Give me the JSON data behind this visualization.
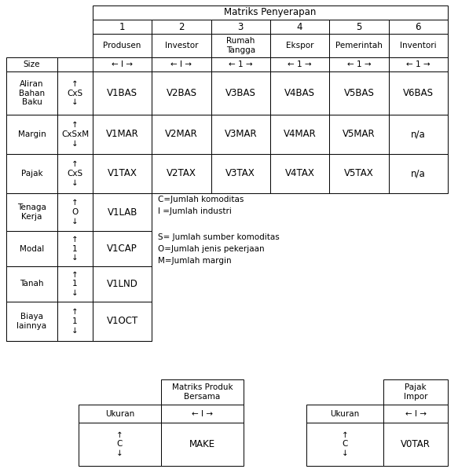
{
  "title": "Matriks Penyerapan",
  "col_headers_1": [
    "1",
    "2",
    "3",
    "4",
    "5",
    "6"
  ],
  "col_headers_2": [
    "Produsen",
    "Investor",
    "Rumah\nTangga",
    "Ekspor",
    "Pemerintah",
    "Inventori"
  ],
  "col_size_row": [
    "← I →",
    "← I →",
    "← 1 →",
    "← 1 →",
    "← 1 →",
    "← 1 →"
  ],
  "rows": [
    {
      "label": "Aliran\nBahan\nBaku",
      "size": "↑\nCxS\n↓",
      "cells": [
        "V1BAS",
        "V2BAS",
        "V3BAS",
        "V4BAS",
        "V5BAS",
        "V6BAS"
      ]
    },
    {
      "label": "Margin",
      "size": "↑\nCxSxM\n↓",
      "cells": [
        "V1MAR",
        "V2MAR",
        "V3MAR",
        "V4MAR",
        "V5MAR",
        "n/a"
      ]
    },
    {
      "label": "Pajak",
      "size": "↑\nCxS\n↓",
      "cells": [
        "V1TAX",
        "V2TAX",
        "V3TAX",
        "V4TAX",
        "V5TAX",
        "n/a"
      ]
    },
    {
      "label": "Tenaga\nKerja",
      "size": "↑\nO\n↓",
      "cells": [
        "V1LAB",
        null,
        null,
        null,
        null,
        null
      ]
    },
    {
      "label": "Modal",
      "size": "↑\n1\n↓",
      "cells": [
        "V1CAP",
        null,
        null,
        null,
        null,
        null
      ]
    },
    {
      "label": "Tanah",
      "size": "↑\n1\n↓",
      "cells": [
        "V1LND",
        null,
        null,
        null,
        null,
        null
      ]
    },
    {
      "label": "Biaya\nlainnya",
      "size": "↑\n1\n↓",
      "cells": [
        "V1OCT",
        null,
        null,
        null,
        null,
        null
      ]
    }
  ],
  "legend": [
    "C=Jumlah komoditas",
    "I =Jumlah industri",
    "S= Jumlah sumber komoditas",
    "O=Jumlah jenis pekerjaan",
    "M=Jumlah margin"
  ],
  "bt1_title": "Matriks Produk\nBersama",
  "bt1_size": "← I →",
  "bt1_rlabel": "Ukuran",
  "bt1_rarrow": "↑\nC\n↓",
  "bt1_cell": "MAKE",
  "bt2_title": "Pajak\nImpor",
  "bt2_size": "← I →",
  "bt2_rlabel": "Ukuran",
  "bt2_rarrow": "↑\nC\n↓",
  "bt2_cell": "V0TAR",
  "bg": "#ffffff",
  "fg": "#000000"
}
